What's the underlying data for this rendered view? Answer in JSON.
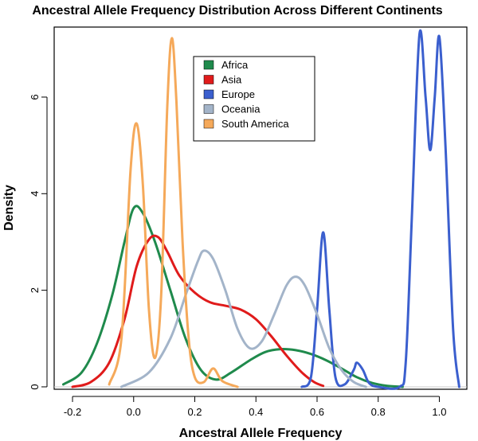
{
  "chart_data": {
    "type": "line",
    "title": "Ancestral Allele Frequency Distribution Across Different Continents",
    "xlabel": "Ancestral Allele Frequency",
    "ylabel": "Density",
    "xlim": [
      -0.26,
      1.09
    ],
    "ylim": [
      -0.05,
      7.45
    ],
    "xticks": [
      "-0.2",
      "0.0",
      "0.2",
      "0.4",
      "0.6",
      "0.8",
      "1.0"
    ],
    "yticks": [
      "0",
      "2",
      "4",
      "6"
    ],
    "grid": false,
    "legend_position": "top-center",
    "series": [
      {
        "name": "Africa",
        "color": "#1f8a4c",
        "points": [
          [
            -0.23,
            0.05
          ],
          [
            -0.17,
            0.3
          ],
          [
            -0.12,
            0.9
          ],
          [
            -0.07,
            1.9
          ],
          [
            -0.03,
            3.0
          ],
          [
            0.0,
            3.7
          ],
          [
            0.03,
            3.6
          ],
          [
            0.07,
            3.0
          ],
          [
            0.12,
            2.0
          ],
          [
            0.17,
            1.0
          ],
          [
            0.22,
            0.35
          ],
          [
            0.27,
            0.15
          ],
          [
            0.32,
            0.3
          ],
          [
            0.38,
            0.55
          ],
          [
            0.43,
            0.72
          ],
          [
            0.48,
            0.78
          ],
          [
            0.53,
            0.76
          ],
          [
            0.58,
            0.68
          ],
          [
            0.63,
            0.55
          ],
          [
            0.68,
            0.38
          ],
          [
            0.73,
            0.2
          ],
          [
            0.78,
            0.08
          ],
          [
            0.83,
            0.02
          ],
          [
            0.88,
            0.0
          ]
        ]
      },
      {
        "name": "Asia",
        "color": "#e01b1b",
        "points": [
          [
            -0.2,
            0.0
          ],
          [
            -0.14,
            0.1
          ],
          [
            -0.08,
            0.5
          ],
          [
            -0.03,
            1.4
          ],
          [
            0.01,
            2.5
          ],
          [
            0.05,
            3.05
          ],
          [
            0.08,
            3.1
          ],
          [
            0.11,
            2.8
          ],
          [
            0.15,
            2.3
          ],
          [
            0.2,
            1.95
          ],
          [
            0.25,
            1.75
          ],
          [
            0.3,
            1.68
          ],
          [
            0.35,
            1.6
          ],
          [
            0.4,
            1.4
          ],
          [
            0.45,
            1.05
          ],
          [
            0.5,
            0.65
          ],
          [
            0.55,
            0.3
          ],
          [
            0.59,
            0.1
          ],
          [
            0.62,
            0.02
          ]
        ]
      },
      {
        "name": "Europe",
        "color": "#3b5fce",
        "points": [
          [
            0.55,
            0.0
          ],
          [
            0.58,
            0.2
          ],
          [
            0.6,
            1.6
          ],
          [
            0.62,
            3.2
          ],
          [
            0.64,
            1.6
          ],
          [
            0.66,
            0.2
          ],
          [
            0.69,
            0.05
          ],
          [
            0.72,
            0.35
          ],
          [
            0.73,
            0.5
          ],
          [
            0.75,
            0.35
          ],
          [
            0.77,
            0.08
          ],
          [
            0.8,
            0.0
          ],
          [
            0.87,
            0.0
          ],
          [
            0.89,
            0.5
          ],
          [
            0.91,
            3.5
          ],
          [
            0.935,
            7.3
          ],
          [
            0.955,
            6.0
          ],
          [
            0.97,
            4.9
          ],
          [
            0.985,
            6.0
          ],
          [
            1.0,
            7.25
          ],
          [
            1.02,
            5.0
          ],
          [
            1.045,
            1.2
          ],
          [
            1.065,
            0.0
          ]
        ]
      },
      {
        "name": "Oceania",
        "color": "#a3b4c9",
        "points": [
          [
            -0.04,
            0.0
          ],
          [
            0.05,
            0.3
          ],
          [
            0.12,
            1.0
          ],
          [
            0.17,
            1.9
          ],
          [
            0.21,
            2.6
          ],
          [
            0.23,
            2.82
          ],
          [
            0.26,
            2.65
          ],
          [
            0.3,
            2.0
          ],
          [
            0.34,
            1.2
          ],
          [
            0.38,
            0.8
          ],
          [
            0.42,
            0.95
          ],
          [
            0.46,
            1.5
          ],
          [
            0.5,
            2.1
          ],
          [
            0.53,
            2.28
          ],
          [
            0.56,
            2.1
          ],
          [
            0.6,
            1.5
          ],
          [
            0.64,
            0.8
          ],
          [
            0.68,
            0.35
          ],
          [
            0.72,
            0.1
          ],
          [
            0.76,
            0.0
          ]
        ]
      },
      {
        "name": "South America",
        "color": "#f5a95a",
        "points": [
          [
            -0.08,
            0.05
          ],
          [
            -0.04,
            1.0
          ],
          [
            -0.01,
            4.5
          ],
          [
            0.01,
            5.45
          ],
          [
            0.03,
            4.2
          ],
          [
            0.05,
            1.6
          ],
          [
            0.07,
            0.6
          ],
          [
            0.09,
            1.9
          ],
          [
            0.11,
            5.8
          ],
          [
            0.125,
            7.22
          ],
          [
            0.14,
            5.9
          ],
          [
            0.16,
            3.0
          ],
          [
            0.18,
            1.0
          ],
          [
            0.2,
            0.2
          ],
          [
            0.23,
            0.1
          ],
          [
            0.26,
            0.38
          ],
          [
            0.29,
            0.12
          ],
          [
            0.34,
            0.0
          ]
        ]
      }
    ]
  }
}
